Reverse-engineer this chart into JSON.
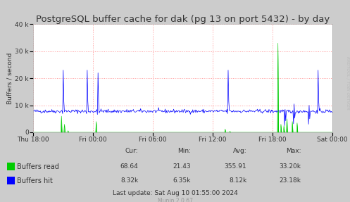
{
  "title": "PostgreSQL buffer cache for dak (pg 13 on port 5432) - by day",
  "ylabel": "Buffers / second",
  "bg_color": "#CCCCCC",
  "plot_bg_color": "#FFFFFF",
  "grid_color": "#FF9999",
  "ylim": [
    0,
    40000
  ],
  "yticks": [
    0,
    10000,
    20000,
    30000,
    40000
  ],
  "ytick_labels": [
    "0",
    "10 k",
    "20 k",
    "30 k",
    "40 k"
  ],
  "xtick_labels": [
    "Thu 18:00",
    "Fri 00:00",
    "Fri 06:00",
    "Fri 12:00",
    "Fri 18:00",
    "Sat 00:00"
  ],
  "color_read": "#00CC00",
  "color_hit": "#0000FF",
  "stats_cur": [
    "68.64",
    "8.32k"
  ],
  "stats_min": [
    "21.43",
    "6.35k"
  ],
  "stats_avg": [
    "355.91",
    "8.12k"
  ],
  "stats_max": [
    "33.20k",
    "23.18k"
  ],
  "last_update": "Last update: Sat Aug 10 01:55:00 2024",
  "munin_version": "Munin 2.0.67",
  "rrdtool_label": "RRDTOOL / TOBI OETIKER",
  "title_fontsize": 9.5,
  "axis_fontsize": 6.5,
  "legend_fontsize": 7,
  "stats_fontsize": 6.5
}
